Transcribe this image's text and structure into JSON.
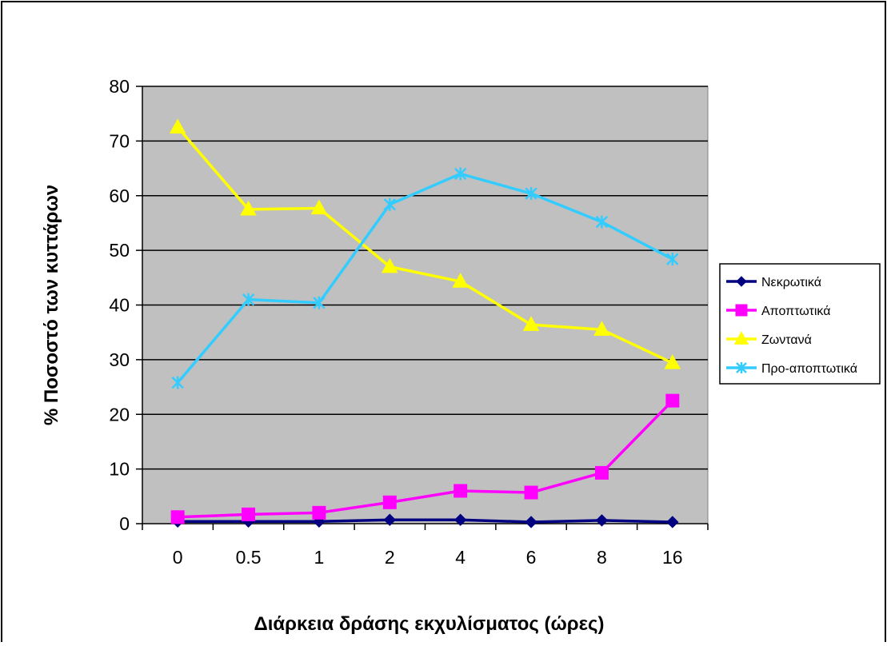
{
  "chart_data": {
    "type": "line",
    "title": "",
    "xlabel": "Διάρκεια δράσης εκχυλίσματος (ώρες)",
    "ylabel": "% Ποσοστό των κυττάρων",
    "categories": [
      "0",
      "0.5",
      "1",
      "2",
      "4",
      "6",
      "8",
      "16"
    ],
    "ylim": [
      0,
      80
    ],
    "yticks": [
      0,
      10,
      20,
      30,
      40,
      50,
      60,
      70,
      80
    ],
    "grid": true,
    "legend_position": "right",
    "plot_background": "#c0c0c0",
    "series": [
      {
        "name": "Νεκρωτικά",
        "color": "#000080",
        "marker": "diamond",
        "values": [
          0.4,
          0.4,
          0.4,
          0.7,
          0.7,
          0.3,
          0.6,
          0.3
        ]
      },
      {
        "name": "Αποπτωτικά",
        "color": "#ff00ff",
        "marker": "square",
        "values": [
          1.2,
          1.7,
          2.0,
          3.9,
          6.0,
          5.7,
          9.3,
          22.5
        ]
      },
      {
        "name": "Ζωντανά",
        "color": "#ffff00",
        "marker": "triangle",
        "values": [
          72.5,
          57.5,
          57.7,
          47.0,
          44.3,
          36.4,
          35.5,
          29.4
        ]
      },
      {
        "name": "Προ-αποπτωτικά",
        "color": "#33ccff",
        "marker": "star",
        "values": [
          25.8,
          41.0,
          40.4,
          58.4,
          64.0,
          60.4,
          55.2,
          48.4
        ]
      }
    ]
  }
}
